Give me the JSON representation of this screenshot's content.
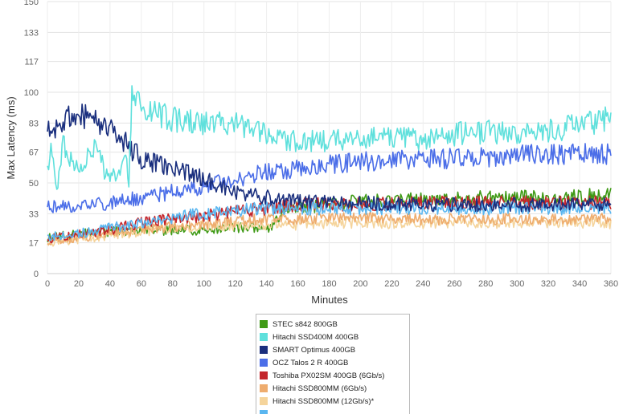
{
  "chart_data": {
    "type": "line",
    "title": "",
    "xlabel": "Minutes",
    "ylabel": "Max Latency (ms)",
    "xlim": [
      0,
      360
    ],
    "ylim": [
      0,
      150
    ],
    "x_ticks": [
      "0",
      "20",
      "40",
      "60",
      "80",
      "100",
      "120",
      "140",
      "160",
      "180",
      "200",
      "220",
      "240",
      "260",
      "280",
      "300",
      "320",
      "340",
      "360"
    ],
    "y_ticks": [
      "0",
      "17",
      "33",
      "50",
      "67",
      "83",
      "100",
      "117",
      "133",
      "150"
    ],
    "grid": true,
    "legend_position": "bottom",
    "series": [
      {
        "name": "STEC s842 800GB",
        "color": "#3f9a16",
        "points": [
          [
            0,
            20
          ],
          [
            20,
            22
          ],
          [
            40,
            23
          ],
          [
            60,
            24
          ],
          [
            80,
            24
          ],
          [
            100,
            24
          ],
          [
            120,
            25
          ],
          [
            140,
            26
          ],
          [
            144,
            25
          ],
          [
            150,
            35
          ],
          [
            180,
            38
          ],
          [
            200,
            40
          ],
          [
            230,
            41
          ],
          [
            260,
            41
          ],
          [
            290,
            42
          ],
          [
            320,
            42
          ],
          [
            350,
            43
          ],
          [
            360,
            45
          ]
        ]
      },
      {
        "name": "Hitachi SSD400M 400GB",
        "color": "#5fe0dc",
        "points": [
          [
            0,
            55
          ],
          [
            3,
            70
          ],
          [
            6,
            48
          ],
          [
            10,
            72
          ],
          [
            20,
            55
          ],
          [
            30,
            70
          ],
          [
            40,
            50
          ],
          [
            50,
            65
          ],
          [
            52,
            45
          ],
          [
            54,
            100
          ],
          [
            60,
            92
          ],
          [
            80,
            85
          ],
          [
            100,
            83
          ],
          [
            120,
            82
          ],
          [
            140,
            78
          ],
          [
            160,
            72
          ],
          [
            200,
            75
          ],
          [
            240,
            74
          ],
          [
            270,
            78
          ],
          [
            300,
            78
          ],
          [
            330,
            80
          ],
          [
            360,
            86
          ]
        ]
      },
      {
        "name": "SMART Optimus 400GB",
        "color": "#1a2f7e",
        "points": [
          [
            0,
            78
          ],
          [
            10,
            85
          ],
          [
            20,
            88
          ],
          [
            30,
            85
          ],
          [
            40,
            80
          ],
          [
            50,
            72
          ],
          [
            60,
            63
          ],
          [
            80,
            58
          ],
          [
            100,
            52
          ],
          [
            120,
            45
          ],
          [
            140,
            42
          ],
          [
            160,
            40
          ],
          [
            200,
            39
          ],
          [
            240,
            38
          ],
          [
            280,
            38
          ],
          [
            320,
            38
          ],
          [
            360,
            38
          ]
        ]
      },
      {
        "name": "OCZ Talos 2 R 400GB",
        "color": "#4b6ee8",
        "points": [
          [
            0,
            37
          ],
          [
            20,
            38
          ],
          [
            40,
            39
          ],
          [
            60,
            42
          ],
          [
            80,
            45
          ],
          [
            100,
            48
          ],
          [
            120,
            52
          ],
          [
            140,
            56
          ],
          [
            160,
            58
          ],
          [
            200,
            62
          ],
          [
            240,
            63
          ],
          [
            280,
            64
          ],
          [
            320,
            66
          ],
          [
            360,
            66
          ]
        ]
      },
      {
        "name": "Toshiba PX02SM 400GB (6Gb/s)",
        "color": "#c3252b",
        "points": [
          [
            0,
            19
          ],
          [
            20,
            22
          ],
          [
            40,
            24
          ],
          [
            60,
            28
          ],
          [
            80,
            30
          ],
          [
            100,
            32
          ],
          [
            120,
            34
          ],
          [
            140,
            36
          ],
          [
            160,
            38
          ],
          [
            200,
            38
          ],
          [
            240,
            39
          ],
          [
            280,
            39
          ],
          [
            320,
            39
          ],
          [
            360,
            39
          ]
        ]
      },
      {
        "name": "Hitachi SSD800MM (6Gb/s)",
        "color": "#eeac6e",
        "points": [
          [
            0,
            18
          ],
          [
            20,
            20
          ],
          [
            40,
            22
          ],
          [
            60,
            24
          ],
          [
            80,
            26
          ],
          [
            100,
            27
          ],
          [
            120,
            29
          ],
          [
            140,
            30
          ],
          [
            160,
            30
          ],
          [
            200,
            31
          ],
          [
            240,
            30
          ],
          [
            280,
            30
          ],
          [
            320,
            30
          ],
          [
            360,
            30
          ]
        ]
      },
      {
        "name": "Hitachi SSD800MM (12Gb/s)*",
        "color": "#f5d49b",
        "points": [
          [
            0,
            17
          ],
          [
            20,
            19
          ],
          [
            40,
            21
          ],
          [
            60,
            23
          ],
          [
            80,
            25
          ],
          [
            100,
            26
          ],
          [
            120,
            27
          ],
          [
            140,
            27
          ],
          [
            160,
            27
          ],
          [
            200,
            28
          ],
          [
            240,
            28
          ],
          [
            280,
            28
          ],
          [
            320,
            28
          ],
          [
            360,
            28
          ]
        ]
      },
      {
        "name": "",
        "color": "#5ab6f0",
        "points": [
          [
            0,
            20
          ],
          [
            20,
            22
          ],
          [
            40,
            25
          ],
          [
            60,
            28
          ],
          [
            80,
            31
          ],
          [
            100,
            33
          ],
          [
            120,
            35
          ],
          [
            140,
            36
          ],
          [
            160,
            36
          ],
          [
            200,
            36
          ],
          [
            240,
            36
          ],
          [
            280,
            36
          ],
          [
            320,
            36
          ],
          [
            360,
            36
          ]
        ]
      }
    ]
  }
}
